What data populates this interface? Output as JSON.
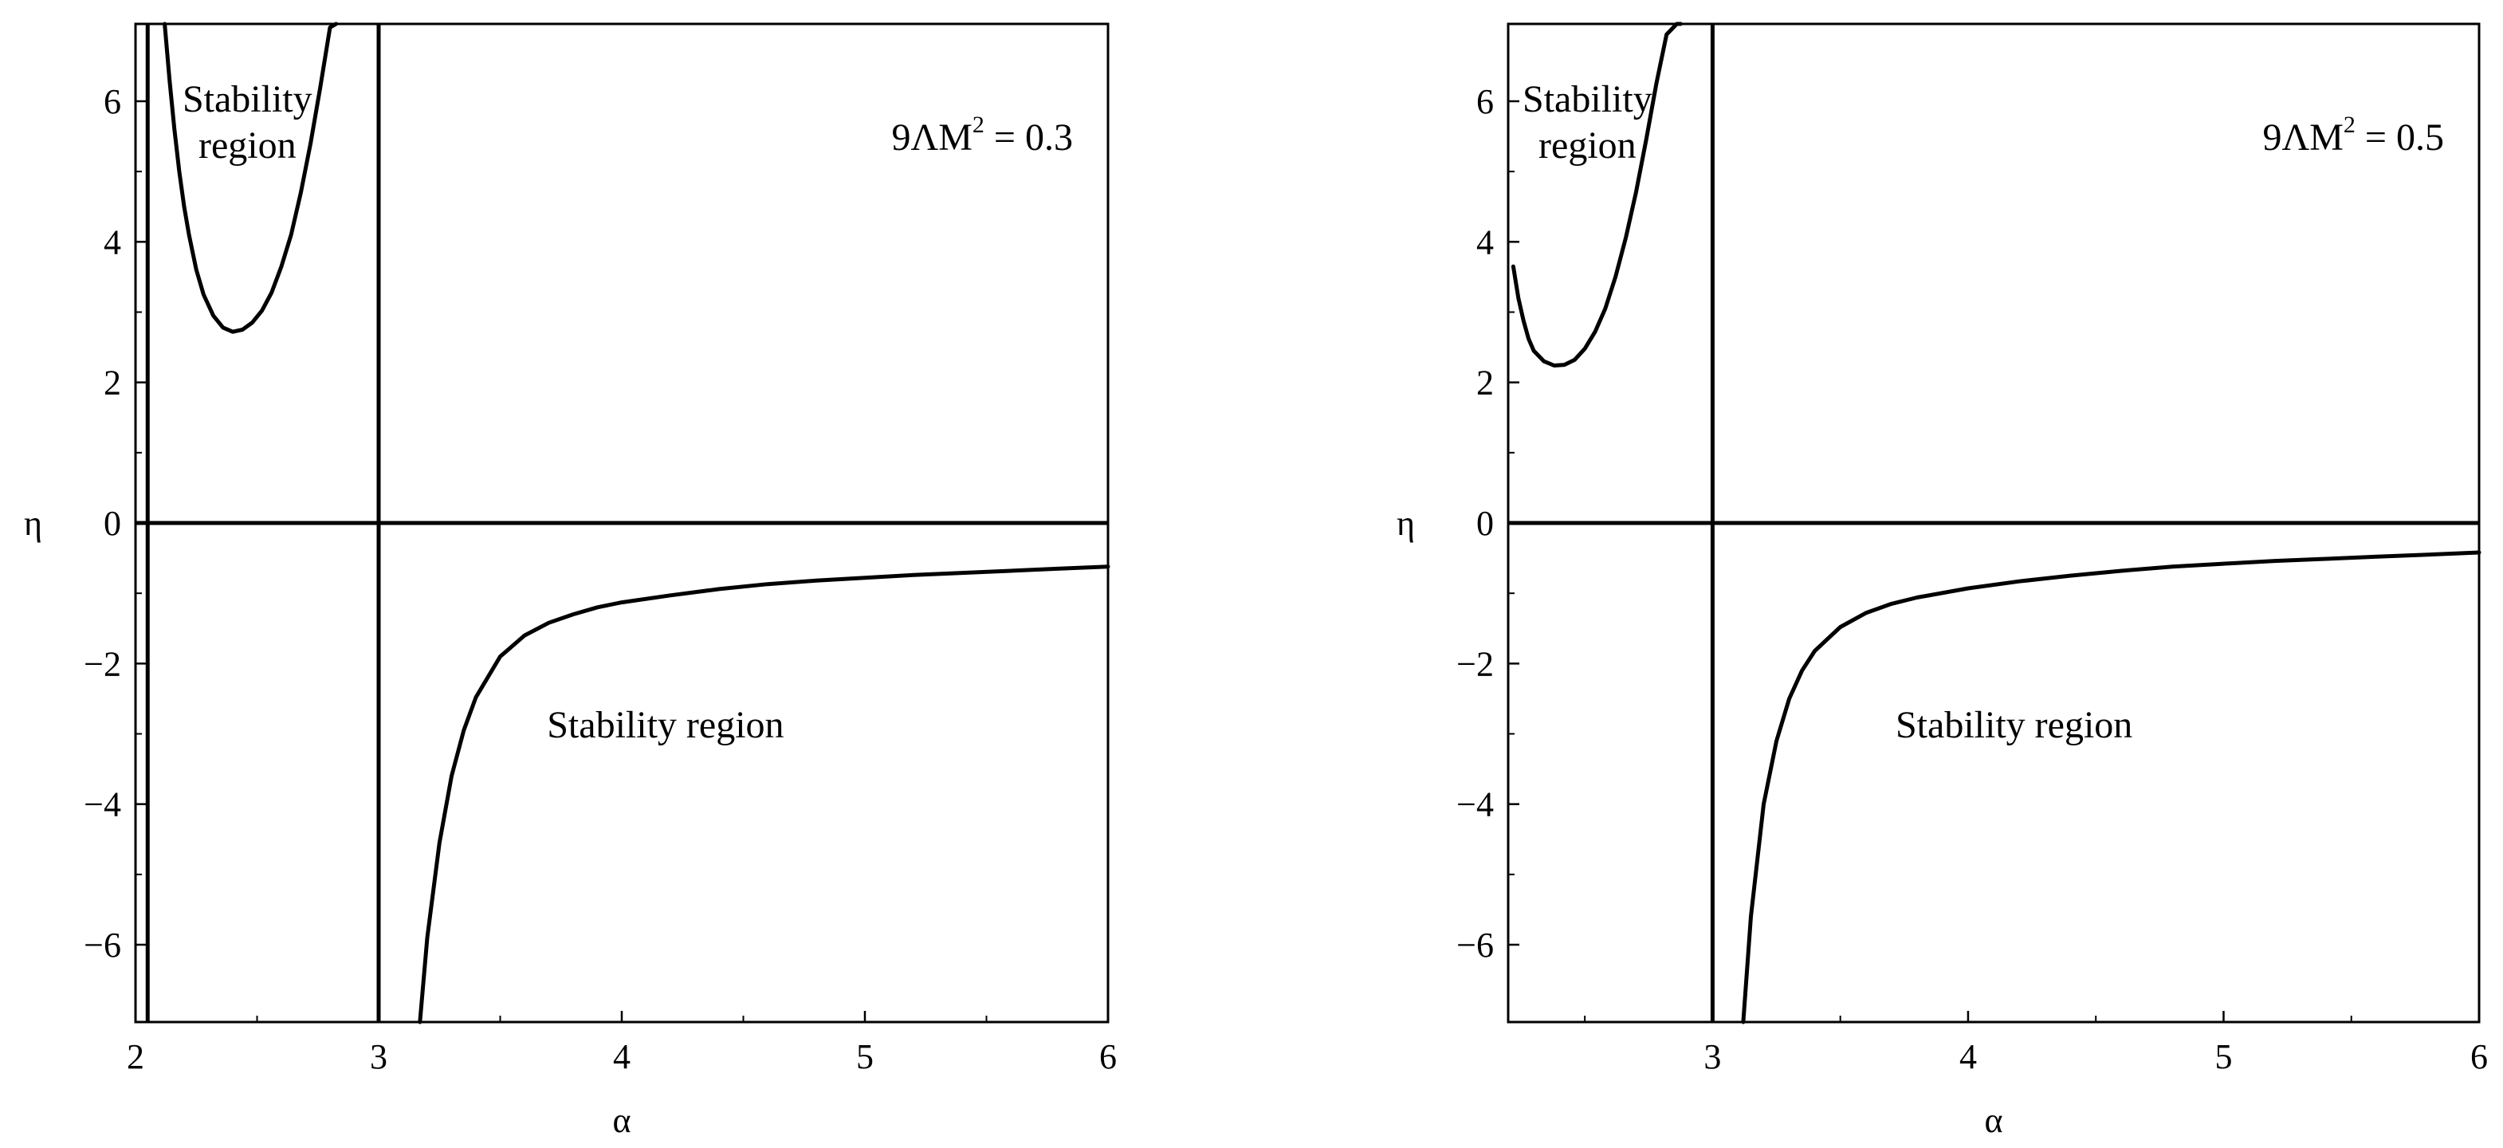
{
  "chart_data": [
    {
      "type": "line",
      "xlabel": "α",
      "ylabel": "η",
      "xlim": [
        2.0,
        6.0
      ],
      "ylim": [
        -7.1,
        7.1
      ],
      "xticks": [
        2,
        3,
        4,
        5,
        6
      ],
      "xtick_labels": [
        "2",
        "3",
        "4",
        "5",
        "6"
      ],
      "yticks": [
        -6,
        -4,
        -2,
        0,
        2,
        4,
        6
      ],
      "ytick_labels": [
        "−6",
        "−4",
        "−2",
        "0",
        "2",
        "4",
        "6"
      ],
      "parameter_label": {
        "main": "9ΛM",
        "sup": "2",
        "rest": " = 0.3"
      },
      "vertical_lines": [
        2.05,
        3.0
      ],
      "horizontal_lines": [
        0
      ],
      "annotations": [
        {
          "text": [
            "Stability",
            "region"
          ],
          "x": 2.46,
          "y": 5.85
        },
        {
          "text": [
            "Stability region"
          ],
          "x": 4.18,
          "y": -3.05
        }
      ],
      "series": [
        {
          "x": [
            2.12,
            2.14,
            2.16,
            2.18,
            2.2,
            2.22,
            2.25,
            2.28,
            2.32,
            2.36,
            2.4,
            2.44,
            2.48,
            2.52,
            2.56,
            2.6,
            2.64,
            2.68,
            2.72,
            2.76,
            2.8,
            2.825
          ],
          "y": [
            7.1,
            6.3,
            5.6,
            5.0,
            4.5,
            4.1,
            3.6,
            3.25,
            2.95,
            2.78,
            2.72,
            2.75,
            2.85,
            3.02,
            3.28,
            3.65,
            4.1,
            4.7,
            5.4,
            6.2,
            7.05,
            7.1
          ]
        },
        {
          "x": [
            3.17,
            3.2,
            3.25,
            3.3,
            3.35,
            3.4,
            3.5,
            3.6,
            3.7,
            3.8,
            3.9,
            4.0,
            4.2,
            4.4,
            4.6,
            4.8,
            5.0,
            5.2,
            5.4,
            5.6,
            5.8,
            6.0
          ],
          "y": [
            -7.1,
            -5.9,
            -4.55,
            -3.6,
            -2.95,
            -2.48,
            -1.9,
            -1.6,
            -1.42,
            -1.3,
            -1.2,
            -1.13,
            -1.03,
            -0.94,
            -0.87,
            -0.82,
            -0.78,
            -0.74,
            -0.71,
            -0.68,
            -0.65,
            -0.62
          ]
        }
      ]
    },
    {
      "type": "line",
      "xlabel": "α",
      "ylabel": "η",
      "xlim": [
        2.2,
        6.0
      ],
      "ylim": [
        -7.1,
        7.1
      ],
      "xticks": [
        3,
        4,
        5,
        6
      ],
      "xtick_labels": [
        "3",
        "4",
        "5",
        "6"
      ],
      "yticks": [
        -6,
        -4,
        -2,
        0,
        2,
        4,
        6
      ],
      "ytick_labels": [
        "−6",
        "−4",
        "−2",
        "0",
        "2",
        "4",
        "6"
      ],
      "parameter_label": {
        "main": "9ΛM",
        "sup": "2",
        "rest": " = 0.5"
      },
      "vertical_lines": [
        3.0
      ],
      "horizontal_lines": [
        0
      ],
      "annotations": [
        {
          "text": [
            "Stability",
            "region"
          ],
          "x": 2.51,
          "y": 5.85
        },
        {
          "text": [
            "Stability region"
          ],
          "x": 4.18,
          "y": -3.05
        }
      ],
      "series": [
        {
          "x": [
            2.22,
            2.24,
            2.26,
            2.28,
            2.3,
            2.34,
            2.38,
            2.42,
            2.46,
            2.5,
            2.54,
            2.58,
            2.62,
            2.66,
            2.7,
            2.74,
            2.78,
            2.82,
            2.86,
            2.875
          ],
          "y": [
            3.65,
            3.2,
            2.88,
            2.62,
            2.45,
            2.3,
            2.24,
            2.25,
            2.32,
            2.48,
            2.72,
            3.05,
            3.5,
            4.05,
            4.7,
            5.45,
            6.25,
            6.95,
            7.1,
            7.1
          ]
        },
        {
          "x": [
            3.12,
            3.15,
            3.2,
            3.25,
            3.3,
            3.35,
            3.4,
            3.5,
            3.6,
            3.7,
            3.8,
            4.0,
            4.2,
            4.4,
            4.6,
            4.8,
            5.0,
            5.2,
            5.4,
            5.6,
            5.8,
            6.0
          ],
          "y": [
            -7.1,
            -5.6,
            -4.0,
            -3.1,
            -2.5,
            -2.1,
            -1.82,
            -1.48,
            -1.28,
            -1.15,
            -1.06,
            -0.93,
            -0.83,
            -0.75,
            -0.68,
            -0.62,
            -0.58,
            -0.54,
            -0.51,
            -0.48,
            -0.45,
            -0.42
          ]
        }
      ]
    }
  ]
}
